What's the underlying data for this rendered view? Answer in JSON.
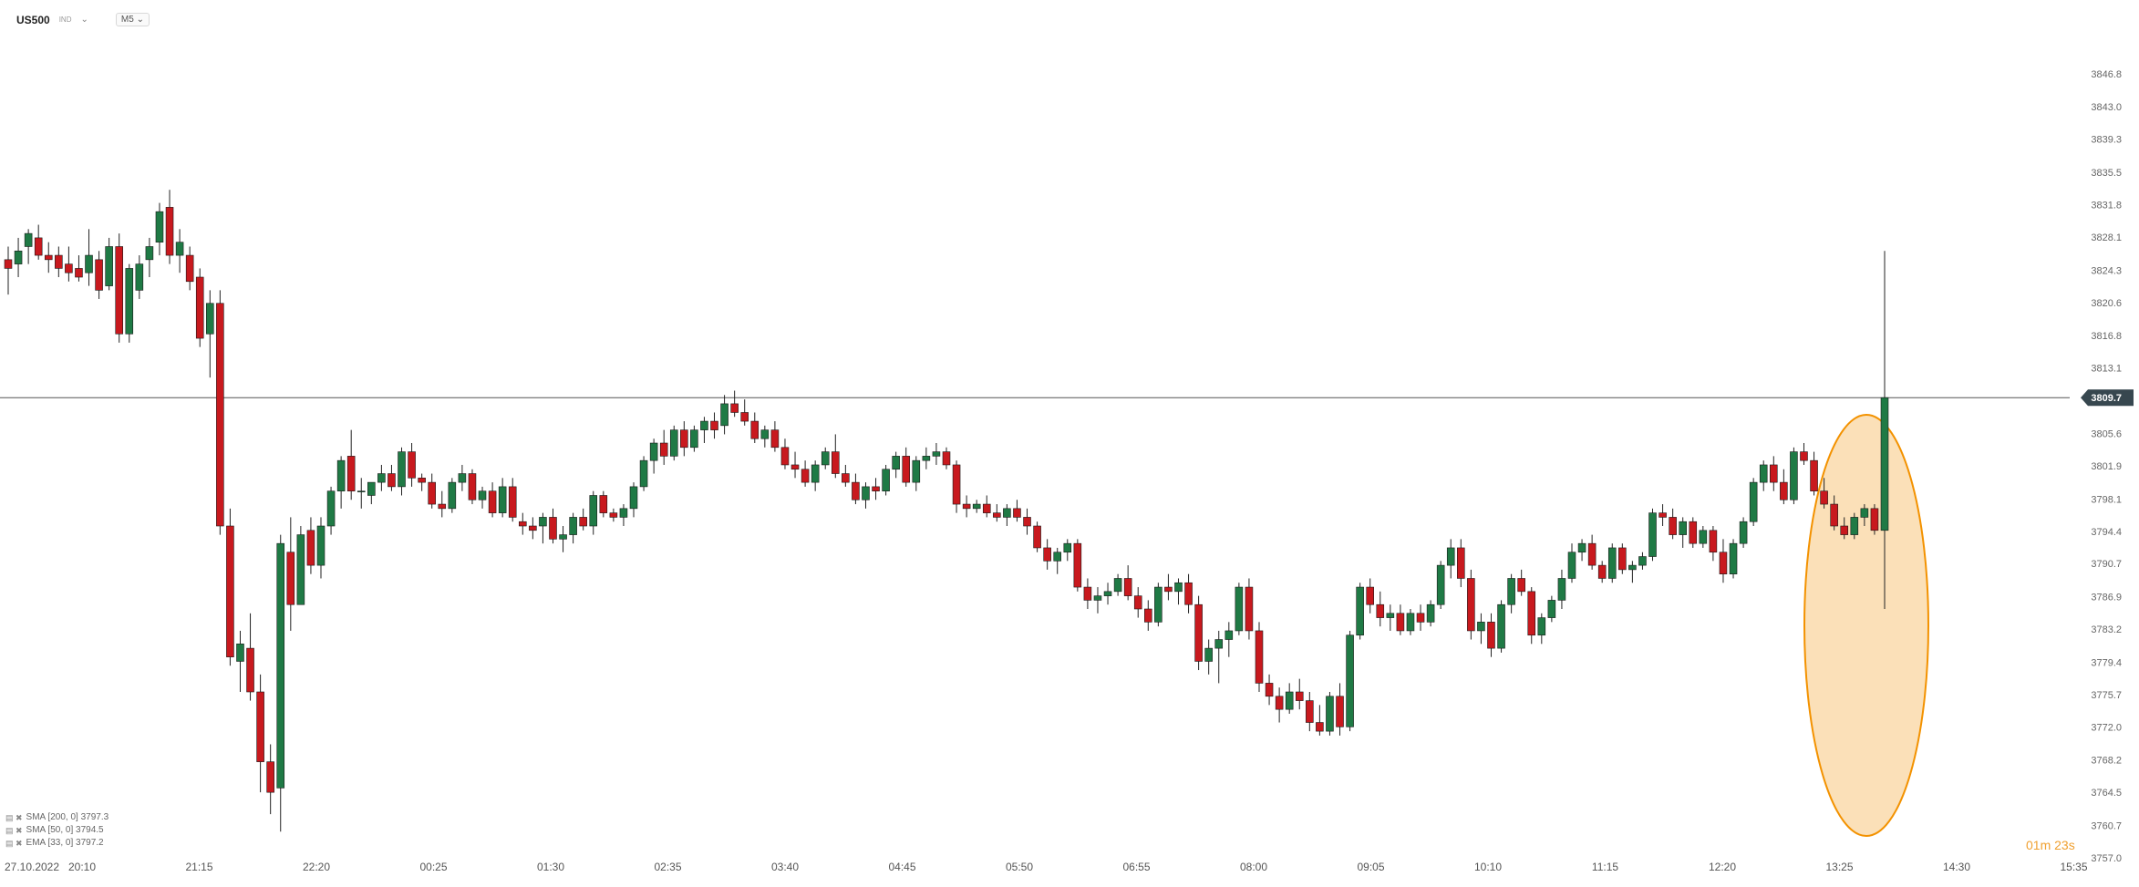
{
  "header": {
    "symbol": "US500",
    "source_badge": "IND",
    "dropdown_icon": "chevron-down-icon",
    "timeframe": "M5"
  },
  "indicators": [
    {
      "label": "SMA [200, 0] 3797.3"
    },
    {
      "label": "SMA [50, 0] 3794.5"
    },
    {
      "label": "EMA [33, 0] 3797.2"
    }
  ],
  "countdown": {
    "value": "01m 23s"
  },
  "chart_data": {
    "type": "candlestick",
    "y_ticks": [
      "3846.8",
      "3843.0",
      "3839.3",
      "3835.5",
      "3831.8",
      "3828.1",
      "3824.3",
      "3820.6",
      "3816.8",
      "3813.1",
      "3809.7",
      "3805.6",
      "3801.9",
      "3798.1",
      "3794.4",
      "3790.7",
      "3786.9",
      "3783.2",
      "3779.4",
      "3775.7",
      "3772.0",
      "3768.2",
      "3764.5",
      "3760.7",
      "3757.0"
    ],
    "x_ticks": [
      "27.10.2022",
      "20:10",
      "21:15",
      "22:20",
      "00:25",
      "01:30",
      "02:35",
      "03:40",
      "04:45",
      "05:50",
      "06:55",
      "08:00",
      "09:05",
      "10:10",
      "11:15",
      "12:20",
      "13:25",
      "14:30",
      "15:35"
    ],
    "ylim": [
      3757.0,
      3849.6
    ],
    "current_price": 3809.7,
    "current_price_label": "3809.7",
    "colors": {
      "up": "#1f7a45",
      "down": "#c8191e",
      "price_tag": "#37474f",
      "highlight_fill": "#fbe0b8",
      "highlight_stroke": "#f39200"
    },
    "highlight": "ellipse around last 6 candles",
    "candles": [
      [
        3825.5,
        3827.0,
        3821.5,
        3824.5
      ],
      [
        3825.0,
        3828.0,
        3823.5,
        3826.5
      ],
      [
        3827.0,
        3829.0,
        3825.0,
        3828.5
      ],
      [
        3828.0,
        3829.5,
        3825.5,
        3826.0
      ],
      [
        3826.0,
        3827.5,
        3824.0,
        3825.5
      ],
      [
        3826.0,
        3827.0,
        3823.5,
        3824.5
      ],
      [
        3825.0,
        3827.0,
        3823.0,
        3824.0
      ],
      [
        3824.5,
        3826.0,
        3823.0,
        3823.5
      ],
      [
        3824.0,
        3829.0,
        3822.5,
        3826.0
      ],
      [
        3825.5,
        3826.5,
        3821.0,
        3822.0
      ],
      [
        3822.5,
        3828.0,
        3822.0,
        3827.0
      ],
      [
        3827.0,
        3828.5,
        3816.0,
        3817.0
      ],
      [
        3817.0,
        3825.0,
        3816.0,
        3824.5
      ],
      [
        3822.0,
        3826.0,
        3821.0,
        3825.0
      ],
      [
        3825.5,
        3828.0,
        3823.5,
        3827.0
      ],
      [
        3827.5,
        3832.0,
        3826.0,
        3831.0
      ],
      [
        3831.5,
        3833.5,
        3825.0,
        3826.0
      ],
      [
        3826.0,
        3829.0,
        3824.0,
        3827.5
      ],
      [
        3826.0,
        3827.0,
        3822.0,
        3823.0
      ],
      [
        3823.5,
        3824.5,
        3815.5,
        3816.5
      ],
      [
        3817.0,
        3822.0,
        3812.0,
        3820.5
      ],
      [
        3820.5,
        3822.0,
        3794.0,
        3795.0
      ],
      [
        3795.0,
        3797.0,
        3779.0,
        3780.0
      ],
      [
        3779.5,
        3783.0,
        3776.0,
        3781.5
      ],
      [
        3781.0,
        3785.0,
        3775.0,
        3776.0
      ],
      [
        3776.0,
        3778.0,
        3764.5,
        3768.0
      ],
      [
        3768.0,
        3770.0,
        3762.0,
        3764.5
      ],
      [
        3765.0,
        3794.0,
        3760.0,
        3793.0
      ],
      [
        3792.0,
        3796.0,
        3783.0,
        3786.0
      ],
      [
        3786.0,
        3795.0,
        3786.0,
        3794.0
      ],
      [
        3794.5,
        3796.0,
        3789.5,
        3790.5
      ],
      [
        3790.5,
        3796.0,
        3789.0,
        3795.0
      ],
      [
        3795.0,
        3799.5,
        3794.0,
        3799.0
      ],
      [
        3799.0,
        3803.0,
        3797.0,
        3802.5
      ],
      [
        3803.0,
        3806.0,
        3798.0,
        3799.0
      ],
      [
        3799.0,
        3800.5,
        3797.0,
        3799.0
      ],
      [
        3798.5,
        3800.0,
        3797.5,
        3800.0
      ],
      [
        3800.0,
        3802.0,
        3799.0,
        3801.0
      ],
      [
        3801.0,
        3802.0,
        3799.0,
        3799.5
      ],
      [
        3799.5,
        3804.0,
        3798.5,
        3803.5
      ],
      [
        3803.5,
        3804.5,
        3799.5,
        3800.5
      ],
      [
        3800.5,
        3801.0,
        3799.0,
        3800.0
      ],
      [
        3800.0,
        3801.0,
        3797.0,
        3797.5
      ],
      [
        3797.5,
        3799.0,
        3796.0,
        3797.0
      ],
      [
        3797.0,
        3800.5,
        3796.5,
        3800.0
      ],
      [
        3800.0,
        3802.0,
        3799.0,
        3801.0
      ],
      [
        3801.0,
        3801.5,
        3797.5,
        3798.0
      ],
      [
        3798.0,
        3799.5,
        3797.0,
        3799.0
      ],
      [
        3799.0,
        3800.0,
        3796.0,
        3796.5
      ],
      [
        3796.5,
        3800.5,
        3796.0,
        3799.5
      ],
      [
        3799.5,
        3800.5,
        3795.5,
        3796.0
      ],
      [
        3795.5,
        3796.5,
        3794.0,
        3795.0
      ],
      [
        3795.0,
        3796.0,
        3793.5,
        3794.5
      ],
      [
        3795.0,
        3796.5,
        3793.0,
        3796.0
      ],
      [
        3796.0,
        3797.0,
        3793.0,
        3793.5
      ],
      [
        3793.5,
        3795.0,
        3792.0,
        3794.0
      ],
      [
        3794.0,
        3796.5,
        3793.0,
        3796.0
      ],
      [
        3796.0,
        3797.0,
        3794.5,
        3795.0
      ],
      [
        3795.0,
        3799.0,
        3794.0,
        3798.5
      ],
      [
        3798.5,
        3799.0,
        3796.0,
        3796.5
      ],
      [
        3796.5,
        3797.0,
        3795.5,
        3796.0
      ],
      [
        3796.0,
        3797.5,
        3795.0,
        3797.0
      ],
      [
        3797.0,
        3800.0,
        3796.0,
        3799.5
      ],
      [
        3799.5,
        3803.0,
        3799.0,
        3802.5
      ],
      [
        3802.5,
        3805.0,
        3801.0,
        3804.5
      ],
      [
        3804.5,
        3806.0,
        3802.0,
        3803.0
      ],
      [
        3803.0,
        3806.5,
        3802.5,
        3806.0
      ],
      [
        3806.0,
        3807.0,
        3803.0,
        3804.0
      ],
      [
        3804.0,
        3806.5,
        3803.5,
        3806.0
      ],
      [
        3806.0,
        3807.5,
        3804.5,
        3807.0
      ],
      [
        3807.0,
        3808.0,
        3805.0,
        3806.0
      ],
      [
        3806.5,
        3810.0,
        3805.5,
        3809.0
      ],
      [
        3809.0,
        3810.5,
        3807.5,
        3808.0
      ],
      [
        3808.0,
        3809.5,
        3806.5,
        3807.0
      ],
      [
        3807.0,
        3808.0,
        3804.5,
        3805.0
      ],
      [
        3805.0,
        3806.5,
        3804.0,
        3806.0
      ],
      [
        3806.0,
        3807.0,
        3803.5,
        3804.0
      ],
      [
        3804.0,
        3805.0,
        3801.5,
        3802.0
      ],
      [
        3802.0,
        3803.5,
        3800.5,
        3801.5
      ],
      [
        3801.5,
        3802.5,
        3799.5,
        3800.0
      ],
      [
        3800.0,
        3802.5,
        3799.0,
        3802.0
      ],
      [
        3802.0,
        3804.0,
        3801.5,
        3803.5
      ],
      [
        3803.5,
        3805.5,
        3800.5,
        3801.0
      ],
      [
        3801.0,
        3802.0,
        3799.5,
        3800.0
      ],
      [
        3800.0,
        3801.0,
        3797.5,
        3798.0
      ],
      [
        3798.0,
        3800.0,
        3797.0,
        3799.5
      ],
      [
        3799.5,
        3800.5,
        3798.0,
        3799.0
      ],
      [
        3799.0,
        3802.0,
        3798.5,
        3801.5
      ],
      [
        3801.5,
        3803.5,
        3800.5,
        3803.0
      ],
      [
        3803.0,
        3804.0,
        3799.5,
        3800.0
      ],
      [
        3800.0,
        3803.0,
        3799.0,
        3802.5
      ],
      [
        3802.5,
        3804.0,
        3801.5,
        3803.0
      ],
      [
        3803.0,
        3804.5,
        3802.0,
        3803.5
      ],
      [
        3803.5,
        3804.0,
        3801.5,
        3802.0
      ],
      [
        3802.0,
        3802.5,
        3796.5,
        3797.5
      ],
      [
        3797.5,
        3798.5,
        3796.0,
        3797.0
      ],
      [
        3797.0,
        3798.0,
        3796.5,
        3797.5
      ],
      [
        3797.5,
        3798.5,
        3796.0,
        3796.5
      ],
      [
        3796.5,
        3797.5,
        3795.5,
        3796.0
      ],
      [
        3796.0,
        3797.5,
        3795.0,
        3797.0
      ],
      [
        3797.0,
        3798.0,
        3795.5,
        3796.0
      ],
      [
        3796.0,
        3797.0,
        3794.0,
        3795.0
      ],
      [
        3795.0,
        3795.5,
        3792.0,
        3792.5
      ],
      [
        3792.5,
        3793.5,
        3790.0,
        3791.0
      ],
      [
        3791.0,
        3792.5,
        3789.5,
        3792.0
      ],
      [
        3792.0,
        3793.5,
        3791.0,
        3793.0
      ],
      [
        3793.0,
        3793.5,
        3787.5,
        3788.0
      ],
      [
        3788.0,
        3789.0,
        3785.5,
        3786.5
      ],
      [
        3786.5,
        3788.0,
        3785.0,
        3787.0
      ],
      [
        3787.0,
        3788.5,
        3786.0,
        3787.5
      ],
      [
        3787.5,
        3789.5,
        3787.0,
        3789.0
      ],
      [
        3789.0,
        3790.5,
        3786.5,
        3787.0
      ],
      [
        3787.0,
        3788.0,
        3784.5,
        3785.5
      ],
      [
        3785.5,
        3786.5,
        3783.0,
        3784.0
      ],
      [
        3784.0,
        3788.5,
        3783.5,
        3788.0
      ],
      [
        3788.0,
        3789.5,
        3786.5,
        3787.5
      ],
      [
        3787.5,
        3789.0,
        3786.0,
        3788.5
      ],
      [
        3788.5,
        3789.5,
        3785.0,
        3786.0
      ],
      [
        3786.0,
        3787.0,
        3778.5,
        3779.5
      ],
      [
        3779.5,
        3782.0,
        3778.0,
        3781.0
      ],
      [
        3781.0,
        3783.0,
        3777.0,
        3782.0
      ],
      [
        3782.0,
        3784.0,
        3780.0,
        3783.0
      ],
      [
        3783.0,
        3788.5,
        3782.5,
        3788.0
      ],
      [
        3788.0,
        3789.0,
        3782.0,
        3783.0
      ],
      [
        3783.0,
        3784.0,
        3776.0,
        3777.0
      ],
      [
        3777.0,
        3778.0,
        3774.5,
        3775.5
      ],
      [
        3775.5,
        3776.5,
        3772.5,
        3774.0
      ],
      [
        3774.0,
        3777.0,
        3773.5,
        3776.0
      ],
      [
        3776.0,
        3777.5,
        3774.0,
        3775.0
      ],
      [
        3775.0,
        3776.0,
        3771.5,
        3772.5
      ],
      [
        3772.5,
        3774.5,
        3771.0,
        3771.5
      ],
      [
        3771.5,
        3776.0,
        3771.0,
        3775.5
      ],
      [
        3775.5,
        3777.0,
        3771.0,
        3772.0
      ],
      [
        3772.0,
        3783.0,
        3771.5,
        3782.5
      ],
      [
        3782.5,
        3788.5,
        3782.0,
        3788.0
      ],
      [
        3788.0,
        3789.0,
        3785.0,
        3786.0
      ],
      [
        3786.0,
        3787.5,
        3783.5,
        3784.5
      ],
      [
        3784.5,
        3786.0,
        3783.0,
        3785.0
      ],
      [
        3785.0,
        3786.0,
        3782.5,
        3783.0
      ],
      [
        3783.0,
        3785.5,
        3782.5,
        3785.0
      ],
      [
        3785.0,
        3786.0,
        3783.0,
        3784.0
      ],
      [
        3784.0,
        3786.5,
        3783.5,
        3786.0
      ],
      [
        3786.0,
        3791.0,
        3785.5,
        3790.5
      ],
      [
        3790.5,
        3793.5,
        3789.0,
        3792.5
      ],
      [
        3792.5,
        3793.5,
        3788.0,
        3789.0
      ],
      [
        3789.0,
        3790.0,
        3782.0,
        3783.0
      ],
      [
        3783.0,
        3785.0,
        3781.5,
        3784.0
      ],
      [
        3784.0,
        3785.0,
        3780.0,
        3781.0
      ],
      [
        3781.0,
        3786.5,
        3780.5,
        3786.0
      ],
      [
        3786.0,
        3789.5,
        3785.0,
        3789.0
      ],
      [
        3789.0,
        3790.0,
        3787.0,
        3787.5
      ],
      [
        3787.5,
        3788.0,
        3781.5,
        3782.5
      ],
      [
        3782.5,
        3785.0,
        3781.5,
        3784.5
      ],
      [
        3784.5,
        3787.0,
        3784.0,
        3786.5
      ],
      [
        3786.5,
        3790.0,
        3785.5,
        3789.0
      ],
      [
        3789.0,
        3793.0,
        3788.5,
        3792.0
      ],
      [
        3792.0,
        3793.5,
        3791.0,
        3793.0
      ],
      [
        3793.0,
        3794.0,
        3790.0,
        3790.5
      ],
      [
        3790.5,
        3791.0,
        3788.5,
        3789.0
      ],
      [
        3789.0,
        3793.0,
        3788.5,
        3792.5
      ],
      [
        3792.5,
        3793.0,
        3789.5,
        3790.0
      ],
      [
        3790.0,
        3791.0,
        3788.5,
        3790.5
      ],
      [
        3790.5,
        3792.0,
        3790.0,
        3791.5
      ],
      [
        3791.5,
        3797.0,
        3791.0,
        3796.5
      ],
      [
        3796.5,
        3797.5,
        3795.0,
        3796.0
      ],
      [
        3796.0,
        3797.0,
        3793.5,
        3794.0
      ],
      [
        3794.0,
        3796.0,
        3792.5,
        3795.5
      ],
      [
        3795.5,
        3796.0,
        3792.5,
        3793.0
      ],
      [
        3793.0,
        3795.0,
        3792.5,
        3794.5
      ],
      [
        3794.5,
        3795.0,
        3791.0,
        3792.0
      ],
      [
        3792.0,
        3793.5,
        3788.5,
        3789.5
      ],
      [
        3789.5,
        3793.5,
        3789.0,
        3793.0
      ],
      [
        3793.0,
        3796.0,
        3792.5,
        3795.5
      ],
      [
        3795.5,
        3800.5,
        3795.0,
        3800.0
      ],
      [
        3800.0,
        3802.5,
        3799.0,
        3802.0
      ],
      [
        3802.0,
        3803.0,
        3799.0,
        3800.0
      ],
      [
        3800.0,
        3801.5,
        3797.5,
        3798.0
      ],
      [
        3798.0,
        3804.0,
        3797.5,
        3803.5
      ],
      [
        3803.5,
        3804.5,
        3802.0,
        3802.5
      ],
      [
        3802.5,
        3803.5,
        3798.5,
        3799.0
      ],
      [
        3799.0,
        3800.5,
        3797.0,
        3797.5
      ],
      [
        3797.5,
        3798.5,
        3794.5,
        3795.0
      ],
      [
        3795.0,
        3796.0,
        3793.5,
        3794.0
      ],
      [
        3794.0,
        3796.5,
        3793.5,
        3796.0
      ],
      [
        3796.0,
        3797.5,
        3795.0,
        3797.0
      ],
      [
        3797.0,
        3797.5,
        3794.0,
        3794.5
      ],
      [
        3794.5,
        3826.5,
        3785.5,
        3809.7
      ]
    ]
  }
}
